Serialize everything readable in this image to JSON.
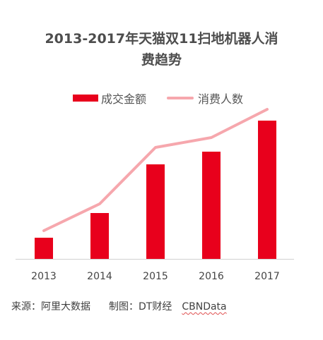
{
  "title_line1": "2013-2017年天猫双11扫地机器人消",
  "title_line2": "费趋势",
  "colors": {
    "bar": "#e8001c",
    "line": "#f6a7ad",
    "axis": "#d0d0d0"
  },
  "chart_data": {
    "type": "bar",
    "title": "2013-2017年天猫双11扫地机器人消费趋势",
    "categories": [
      "2013",
      "2014",
      "2015",
      "2016",
      "2017"
    ],
    "series": [
      {
        "name": "成交金额",
        "type": "bar",
        "values": [
          30,
          65,
          134,
          152,
          196
        ]
      },
      {
        "name": "消费人数",
        "type": "line",
        "values": [
          40,
          78,
          158,
          172,
          212
        ]
      }
    ],
    "ylim": [
      0,
      230
    ],
    "grid": false,
    "legend": "top"
  },
  "footer": {
    "source": "来源：阿里大数据",
    "maker": "制图：DT财经",
    "brand": "CBNData"
  }
}
